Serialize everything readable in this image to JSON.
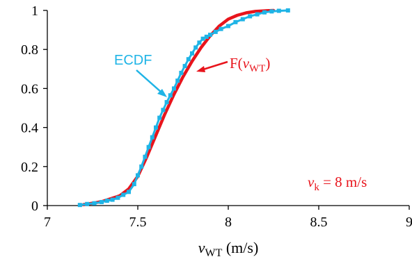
{
  "chart_data": {
    "type": "line",
    "xlabel": {
      "var": "v",
      "sub": "WT",
      "unit": " (m/s)"
    },
    "ylabel": "",
    "xlim": [
      7,
      9
    ],
    "ylim": [
      0,
      1
    ],
    "x_ticks": [
      7,
      7.5,
      8,
      8.5,
      9
    ],
    "y_ticks": [
      0,
      0.2,
      0.4,
      0.6,
      0.8,
      1
    ],
    "grid": false,
    "annotations": {
      "ecdf_label": "ECDF",
      "f_label": {
        "prefix": "F(",
        "var": "v",
        "sub": "WT",
        "suffix": ")"
      },
      "vk_label": {
        "var": "v",
        "sub": "k",
        "text": " = 8 m/s"
      }
    },
    "colors": {
      "F": "#e8141c",
      "ECDF": "#1fb4e6",
      "axis": "#000000"
    },
    "series": [
      {
        "key": "F",
        "style": "line",
        "x": [
          7.2,
          7.3,
          7.4,
          7.45,
          7.5,
          7.55,
          7.6,
          7.65,
          7.7,
          7.75,
          7.8,
          7.85,
          7.9,
          7.95,
          8.0,
          8.05,
          8.1,
          8.15,
          8.2,
          8.25
        ],
        "y": [
          0.005,
          0.02,
          0.05,
          0.085,
          0.15,
          0.25,
          0.36,
          0.47,
          0.57,
          0.66,
          0.74,
          0.81,
          0.87,
          0.92,
          0.955,
          0.975,
          0.988,
          0.995,
          0.998,
          1.0
        ]
      },
      {
        "key": "ECDF",
        "style": "markers",
        "x": [
          7.18,
          7.22,
          7.26,
          7.3,
          7.33,
          7.36,
          7.39,
          7.42,
          7.45,
          7.48,
          7.5,
          7.52,
          7.54,
          7.56,
          7.58,
          7.6,
          7.62,
          7.64,
          7.66,
          7.68,
          7.7,
          7.72,
          7.74,
          7.76,
          7.78,
          7.8,
          7.82,
          7.84,
          7.86,
          7.88,
          7.9,
          7.93,
          7.96,
          8.0,
          8.04,
          8.08,
          8.12,
          8.16,
          8.2,
          8.24,
          8.28,
          8.33
        ],
        "y": [
          0.003,
          0.008,
          0.012,
          0.018,
          0.025,
          0.03,
          0.04,
          0.055,
          0.07,
          0.11,
          0.155,
          0.2,
          0.25,
          0.3,
          0.35,
          0.4,
          0.45,
          0.49,
          0.53,
          0.565,
          0.6,
          0.64,
          0.68,
          0.715,
          0.75,
          0.78,
          0.81,
          0.835,
          0.855,
          0.865,
          0.875,
          0.89,
          0.905,
          0.92,
          0.94,
          0.955,
          0.97,
          0.98,
          0.99,
          0.995,
          0.998,
          1.0
        ]
      }
    ]
  }
}
